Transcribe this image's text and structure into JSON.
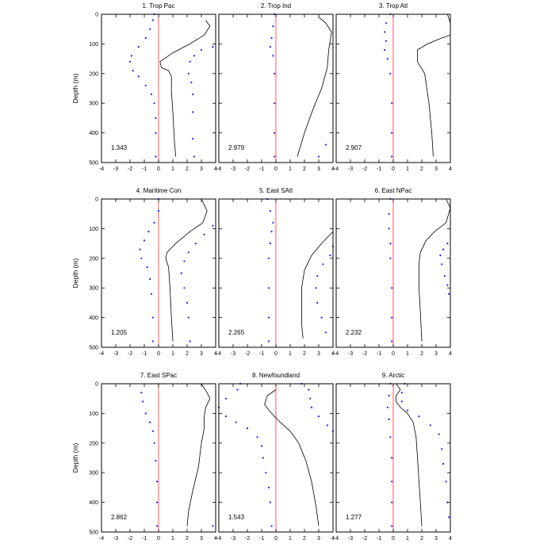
{
  "chart_data": {
    "type": "line",
    "ylabel": "Depth (m)",
    "xlim": [
      -4,
      4
    ],
    "ylim": [
      0,
      500
    ],
    "x_ticks": [
      -4,
      -3,
      -2,
      -1,
      0,
      1,
      2,
      3,
      4
    ],
    "y_ticks": [
      0,
      100,
      200,
      300,
      400,
      500
    ],
    "colors": {
      "solid": "#000000",
      "dotted": "#1a1aff",
      "zero": "#ff4444"
    },
    "panels": [
      {
        "title": "1. Trop Pac",
        "value": "1.343",
        "solid": [
          [
            3.3,
            20
          ],
          [
            3.6,
            40
          ],
          [
            3.2,
            70
          ],
          [
            2.2,
            100
          ],
          [
            1.0,
            130
          ],
          [
            0.1,
            160
          ],
          [
            0.2,
            180
          ],
          [
            0.7,
            190
          ],
          [
            0.9,
            210
          ],
          [
            0.9,
            260
          ],
          [
            1.0,
            330
          ],
          [
            1.1,
            420
          ],
          [
            1.2,
            480
          ]
        ],
        "dotted_left": [
          [
            -0.3,
            0
          ],
          [
            -0.4,
            20
          ],
          [
            -0.6,
            50
          ],
          [
            -0.9,
            80
          ],
          [
            -1.4,
            110
          ],
          [
            -1.9,
            140
          ],
          [
            -2.0,
            160
          ],
          [
            -1.8,
            190
          ],
          [
            -1.4,
            210
          ],
          [
            -0.9,
            240
          ],
          [
            -0.5,
            270
          ],
          [
            -0.3,
            300
          ],
          [
            -0.2,
            350
          ],
          [
            -0.2,
            400
          ],
          [
            -0.2,
            480
          ]
        ],
        "dotted_right": [
          [
            3.8,
            110
          ],
          [
            3.0,
            120
          ],
          [
            2.5,
            140
          ],
          [
            2.2,
            160
          ],
          [
            2.1,
            200
          ],
          [
            2.3,
            230
          ],
          [
            2.4,
            270
          ],
          [
            2.4,
            330
          ],
          [
            2.4,
            420
          ],
          [
            2.5,
            480
          ]
        ]
      },
      {
        "title": "2. Trop Ind",
        "value": "2.979",
        "solid": [
          [
            3.0,
            10
          ],
          [
            3.5,
            30
          ],
          [
            3.9,
            60
          ],
          [
            3.7,
            120
          ],
          [
            3.6,
            180
          ],
          [
            3.2,
            250
          ],
          [
            2.6,
            320
          ],
          [
            2.0,
            400
          ],
          [
            1.5,
            480
          ]
        ],
        "dotted_left": [
          [
            -0.1,
            0
          ],
          [
            -0.2,
            40
          ],
          [
            -0.3,
            80
          ],
          [
            -0.4,
            110
          ],
          [
            -0.2,
            140
          ],
          [
            -0.1,
            200
          ],
          [
            -0.1,
            300
          ],
          [
            -0.1,
            400
          ],
          [
            -0.1,
            480
          ]
        ],
        "dotted_right": [
          [
            3.5,
            440
          ],
          [
            3.0,
            480
          ]
        ]
      },
      {
        "title": "3. Trop Atl",
        "value": "2.907",
        "solid": [
          [
            3.8,
            0
          ],
          [
            4.0,
            30
          ],
          [
            4.0,
            70
          ],
          [
            3.4,
            80
          ],
          [
            2.4,
            100
          ],
          [
            1.7,
            120
          ],
          [
            1.7,
            160
          ],
          [
            2.2,
            200
          ],
          [
            2.5,
            300
          ],
          [
            2.7,
            400
          ],
          [
            2.8,
            480
          ]
        ],
        "dotted_left": [
          [
            -0.2,
            0
          ],
          [
            -0.5,
            30
          ],
          [
            -0.6,
            60
          ],
          [
            -0.5,
            90
          ],
          [
            -0.6,
            120
          ],
          [
            -0.4,
            150
          ],
          [
            -0.2,
            200
          ],
          [
            -0.1,
            300
          ],
          [
            -0.1,
            400
          ],
          [
            -0.1,
            480
          ]
        ],
        "dotted_right": []
      },
      {
        "title": "4. Maritime Con",
        "value": "1.205",
        "solid": [
          [
            3.0,
            0
          ],
          [
            3.4,
            40
          ],
          [
            3.1,
            80
          ],
          [
            2.2,
            110
          ],
          [
            1.2,
            150
          ],
          [
            0.6,
            180
          ],
          [
            0.5,
            200
          ],
          [
            0.7,
            230
          ],
          [
            0.8,
            300
          ],
          [
            0.9,
            400
          ],
          [
            1.0,
            480
          ]
        ],
        "dotted_left": [
          [
            0,
            0
          ],
          [
            0,
            40
          ],
          [
            -0.3,
            80
          ],
          [
            -0.7,
            110
          ],
          [
            -1.0,
            140
          ],
          [
            -1.3,
            170
          ],
          [
            -1.2,
            200
          ],
          [
            -0.8,
            230
          ],
          [
            -0.6,
            270
          ],
          [
            -0.5,
            320
          ],
          [
            -0.4,
            400
          ],
          [
            -0.4,
            480
          ]
        ],
        "dotted_right": [
          [
            3.8,
            90
          ],
          [
            3.2,
            120
          ],
          [
            2.6,
            150
          ],
          [
            2.1,
            180
          ],
          [
            1.8,
            210
          ],
          [
            1.6,
            250
          ],
          [
            1.8,
            300
          ],
          [
            2.0,
            350
          ],
          [
            2.1,
            400
          ],
          [
            2.2,
            480
          ]
        ]
      },
      {
        "title": "5. East SAtl",
        "value": "2.265",
        "solid": [
          [
            4.0,
            110
          ],
          [
            3.2,
            150
          ],
          [
            2.5,
            190
          ],
          [
            2.0,
            240
          ],
          [
            1.8,
            300
          ],
          [
            1.8,
            370
          ],
          [
            1.8,
            420
          ],
          [
            1.9,
            470
          ]
        ],
        "dotted_left": [
          [
            -0.6,
            0
          ],
          [
            -0.4,
            40
          ],
          [
            -0.2,
            80
          ],
          [
            -0.3,
            110
          ],
          [
            -0.4,
            150
          ],
          [
            -0.5,
            200
          ],
          [
            -0.5,
            300
          ],
          [
            -0.5,
            400
          ],
          [
            -0.5,
            480
          ]
        ],
        "dotted_right": [
          [
            4.0,
            160
          ],
          [
            3.8,
            190
          ],
          [
            3.3,
            220
          ],
          [
            2.9,
            260
          ],
          [
            2.8,
            300
          ],
          [
            2.9,
            350
          ],
          [
            3.2,
            400
          ],
          [
            3.5,
            450
          ]
        ]
      },
      {
        "title": "6. East NPac",
        "value": "2.232",
        "solid": [
          [
            3.7,
            0
          ],
          [
            4.0,
            30
          ],
          [
            3.7,
            80
          ],
          [
            2.9,
            110
          ],
          [
            2.3,
            140
          ],
          [
            1.9,
            180
          ],
          [
            1.8,
            220
          ],
          [
            1.8,
            300
          ],
          [
            1.9,
            380
          ],
          [
            2.0,
            480
          ]
        ],
        "dotted_left": [
          [
            -0.2,
            0
          ],
          [
            -0.3,
            50
          ],
          [
            -0.3,
            100
          ],
          [
            -0.2,
            150
          ],
          [
            -0.2,
            200
          ],
          [
            -0.1,
            300
          ],
          [
            -0.1,
            400
          ],
          [
            -0.1,
            480
          ]
        ],
        "dotted_right": [
          [
            3.8,
            150
          ],
          [
            3.5,
            170
          ],
          [
            3.3,
            190
          ],
          [
            3.4,
            220
          ],
          [
            3.6,
            260
          ],
          [
            3.8,
            290
          ],
          [
            3.9,
            320
          ]
        ]
      },
      {
        "title": "7. East SPac",
        "value": "2.862",
        "solid": [
          [
            3.0,
            0
          ],
          [
            3.4,
            30
          ],
          [
            3.6,
            50
          ],
          [
            3.3,
            80
          ],
          [
            3.2,
            110
          ],
          [
            3.2,
            150
          ],
          [
            3.0,
            200
          ],
          [
            2.8,
            280
          ],
          [
            2.4,
            360
          ],
          [
            2.1,
            430
          ],
          [
            2.0,
            480
          ]
        ],
        "dotted_left": [
          [
            -1.2,
            30
          ],
          [
            -1.1,
            60
          ],
          [
            -0.9,
            100
          ],
          [
            -0.6,
            130
          ],
          [
            -0.4,
            160
          ],
          [
            -0.3,
            200
          ],
          [
            -0.2,
            260
          ],
          [
            -0.1,
            330
          ],
          [
            -0.1,
            400
          ],
          [
            -0.1,
            480
          ]
        ],
        "dotted_right": [
          [
            3.8,
            480
          ]
        ]
      },
      {
        "title": "8. Newfoundland",
        "value": "1.543",
        "solid": [
          [
            0,
            20
          ],
          [
            -0.6,
            40
          ],
          [
            -0.8,
            70
          ],
          [
            -0.3,
            100
          ],
          [
            0.3,
            130
          ],
          [
            1.0,
            160
          ],
          [
            1.6,
            200
          ],
          [
            2.1,
            260
          ],
          [
            2.5,
            330
          ],
          [
            2.8,
            410
          ],
          [
            3.0,
            480
          ]
        ],
        "dotted_left": [
          [
            -2.5,
            0
          ],
          [
            -2.7,
            20
          ],
          [
            -3.5,
            50
          ],
          [
            -4.0,
            80
          ],
          [
            -3.5,
            110
          ],
          [
            -2.8,
            130
          ],
          [
            -2.0,
            150
          ],
          [
            -1.3,
            180
          ],
          [
            -1.0,
            210
          ],
          [
            -0.9,
            250
          ],
          [
            -0.7,
            300
          ],
          [
            -0.5,
            350
          ],
          [
            -0.4,
            400
          ],
          [
            -0.3,
            480
          ]
        ],
        "dotted_right": [
          [
            1.8,
            0
          ],
          [
            2.3,
            20
          ],
          [
            2.4,
            50
          ],
          [
            2.5,
            80
          ],
          [
            3.0,
            110
          ],
          [
            3.6,
            140
          ],
          [
            4.0,
            160
          ]
        ]
      },
      {
        "title": "9. Arctic",
        "value": "1.277",
        "solid": [
          [
            0.2,
            0
          ],
          [
            0.5,
            20
          ],
          [
            0.2,
            40
          ],
          [
            0.2,
            60
          ],
          [
            0.5,
            80
          ],
          [
            1.0,
            100
          ],
          [
            1.4,
            130
          ],
          [
            1.6,
            180
          ],
          [
            1.7,
            250
          ],
          [
            1.8,
            330
          ],
          [
            1.9,
            400
          ],
          [
            2.0,
            480
          ]
        ],
        "dotted_left": [
          [
            -0.2,
            0
          ],
          [
            -0.3,
            40
          ],
          [
            -0.4,
            80
          ],
          [
            -0.3,
            120
          ],
          [
            -0.2,
            180
          ],
          [
            -0.1,
            250
          ],
          [
            -0.1,
            330
          ],
          [
            -0.1,
            400
          ],
          [
            -0.1,
            480
          ]
        ],
        "dotted_right": [
          [
            0.8,
            0
          ],
          [
            0.6,
            30
          ],
          [
            0.6,
            60
          ],
          [
            1.0,
            90
          ],
          [
            1.8,
            110
          ],
          [
            2.6,
            140
          ],
          [
            3.2,
            170
          ],
          [
            3.4,
            220
          ],
          [
            3.5,
            270
          ],
          [
            3.7,
            330
          ],
          [
            3.8,
            400
          ],
          [
            3.9,
            450
          ]
        ]
      }
    ]
  }
}
